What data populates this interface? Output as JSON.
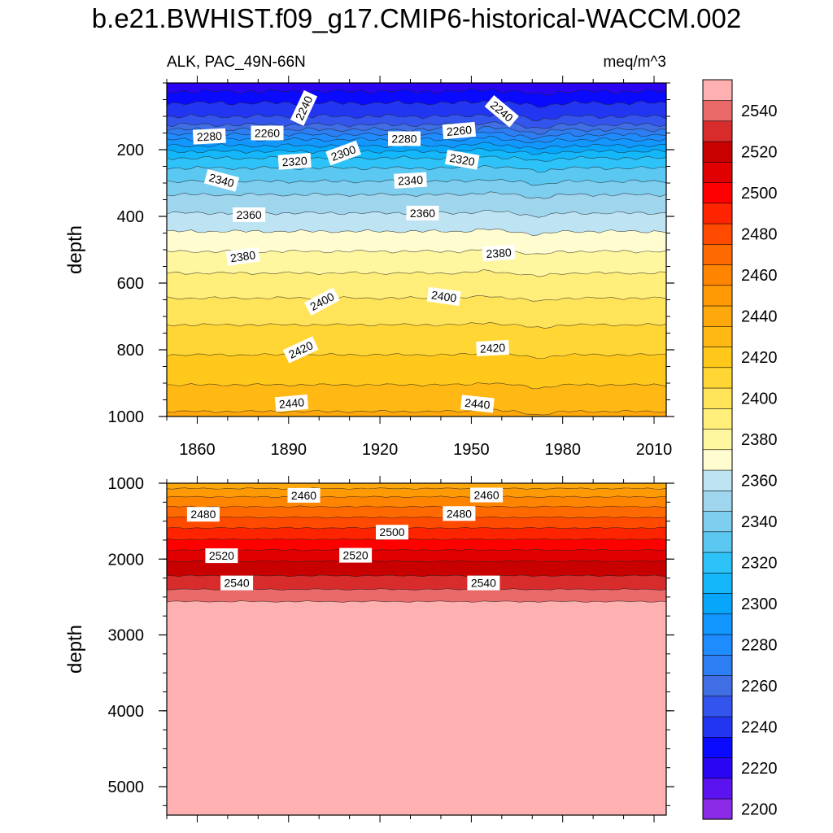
{
  "chart_data": {
    "type": "heatmap",
    "subtype": "filled-contour",
    "title": "b.e21.BWHIST.f09_g17.CMIP6-historical-WACCM.002",
    "left_subtitle": "ALK, PAC_49N-66N",
    "right_subtitle": "meq/m^3",
    "ylabel": "depth",
    "x_range": [
      1850,
      2014
    ],
    "x_ticks": [
      "1860",
      "1890",
      "1920",
      "1950",
      "1980",
      "2010"
    ],
    "x_tick_values": [
      1860,
      1890,
      1920,
      1950,
      1980,
      2010
    ],
    "panels": [
      {
        "name": "upper",
        "ylim": [
          0,
          1000
        ],
        "y_ticks": [
          "200",
          "400",
          "600",
          "800",
          "1000"
        ],
        "y_tick_values": [
          200,
          400,
          600,
          800,
          1000
        ],
        "contour_depths": [
          {
            "level": 2230,
            "depth": 25
          },
          {
            "level": 2240,
            "depth": 60
          },
          {
            "level": 2250,
            "depth": 100
          },
          {
            "level": 2260,
            "depth": 125
          },
          {
            "level": 2270,
            "depth": 140
          },
          {
            "level": 2280,
            "depth": 155
          },
          {
            "level": 2290,
            "depth": 170
          },
          {
            "level": 2300,
            "depth": 188
          },
          {
            "level": 2310,
            "depth": 205
          },
          {
            "level": 2320,
            "depth": 225
          },
          {
            "level": 2330,
            "depth": 255
          },
          {
            "level": 2340,
            "depth": 295
          },
          {
            "level": 2350,
            "depth": 335
          },
          {
            "level": 2360,
            "depth": 390
          },
          {
            "level": 2370,
            "depth": 445
          },
          {
            "level": 2380,
            "depth": 505
          },
          {
            "level": 2390,
            "depth": 570
          },
          {
            "level": 2400,
            "depth": 645
          },
          {
            "level": 2410,
            "depth": 725
          },
          {
            "level": 2420,
            "depth": 815
          },
          {
            "level": 2430,
            "depth": 905
          },
          {
            "level": 2440,
            "depth": 985
          }
        ],
        "contour_labels": [
          {
            "text": "2240",
            "year": 1895,
            "depth": 75,
            "angle": -65
          },
          {
            "text": "2240",
            "year": 1960,
            "depth": 85,
            "angle": 40
          },
          {
            "text": "2280",
            "year": 1864,
            "depth": 160,
            "angle": -3
          },
          {
            "text": "2260",
            "year": 1883,
            "depth": 150,
            "angle": 0
          },
          {
            "text": "2300",
            "year": 1908,
            "depth": 210,
            "angle": -20
          },
          {
            "text": "2280",
            "year": 1928,
            "depth": 167,
            "angle": 0
          },
          {
            "text": "2260",
            "year": 1946,
            "depth": 143,
            "angle": -5
          },
          {
            "text": "2320",
            "year": 1892,
            "depth": 235,
            "angle": -4
          },
          {
            "text": "2320",
            "year": 1947,
            "depth": 230,
            "angle": 10
          },
          {
            "text": "2340",
            "year": 1868,
            "depth": 292,
            "angle": 15
          },
          {
            "text": "2340",
            "year": 1930,
            "depth": 292,
            "angle": -3
          },
          {
            "text": "2360",
            "year": 1877,
            "depth": 395,
            "angle": 0
          },
          {
            "text": "2360",
            "year": 1934,
            "depth": 390,
            "angle": 0
          },
          {
            "text": "2380",
            "year": 1875,
            "depth": 520,
            "angle": -8
          },
          {
            "text": "2380",
            "year": 1959,
            "depth": 510,
            "angle": -4
          },
          {
            "text": "2400",
            "year": 1901,
            "depth": 655,
            "angle": -28
          },
          {
            "text": "2400",
            "year": 1941,
            "depth": 640,
            "angle": 8
          },
          {
            "text": "2420",
            "year": 1894,
            "depth": 800,
            "angle": -25
          },
          {
            "text": "2420",
            "year": 1957,
            "depth": 795,
            "angle": -3
          },
          {
            "text": "2440",
            "year": 1891,
            "depth": 960,
            "angle": -5
          },
          {
            "text": "2440",
            "year": 1952,
            "depth": 962,
            "angle": 6
          }
        ]
      },
      {
        "name": "lower",
        "ylim": [
          1000,
          5375
        ],
        "y_ticks": [
          "1000",
          "2000",
          "3000",
          "4000",
          "5000"
        ],
        "y_tick_values": [
          1000,
          2000,
          3000,
          4000,
          5000
        ],
        "contour_depths": [
          {
            "level": 2450,
            "depth": 1070
          },
          {
            "level": 2460,
            "depth": 1180
          },
          {
            "level": 2470,
            "depth": 1310
          },
          {
            "level": 2480,
            "depth": 1450
          },
          {
            "level": 2490,
            "depth": 1590
          },
          {
            "level": 2500,
            "depth": 1740
          },
          {
            "level": 2510,
            "depth": 1880
          },
          {
            "level": 2520,
            "depth": 2030
          },
          {
            "level": 2530,
            "depth": 2220
          },
          {
            "level": 2540,
            "depth": 2400
          },
          {
            "level": 2550,
            "depth": 2560
          }
        ],
        "contour_labels": [
          {
            "text": "2460",
            "year": 1895,
            "depth": 1160,
            "angle": 0
          },
          {
            "text": "2460",
            "year": 1955,
            "depth": 1155,
            "angle": 0
          },
          {
            "text": "2480",
            "year": 1862,
            "depth": 1410,
            "angle": 0
          },
          {
            "text": "2480",
            "year": 1946,
            "depth": 1400,
            "angle": 0
          },
          {
            "text": "2500",
            "year": 1924,
            "depth": 1645,
            "angle": 0
          },
          {
            "text": "2520",
            "year": 1868,
            "depth": 1955,
            "angle": 0
          },
          {
            "text": "2520",
            "year": 1912,
            "depth": 1950,
            "angle": 0
          },
          {
            "text": "2540",
            "year": 1873,
            "depth": 2315,
            "angle": 0
          },
          {
            "text": "2540",
            "year": 1954,
            "depth": 2315,
            "angle": 0
          }
        ]
      }
    ],
    "colorbar": {
      "ticks": [
        "2200",
        "2220",
        "2240",
        "2260",
        "2280",
        "2300",
        "2320",
        "2340",
        "2360",
        "2380",
        "2400",
        "2420",
        "2440",
        "2460",
        "2480",
        "2500",
        "2520",
        "2540"
      ],
      "levels": [
        2200,
        2210,
        2220,
        2230,
        2240,
        2250,
        2260,
        2270,
        2280,
        2290,
        2300,
        2310,
        2320,
        2330,
        2340,
        2350,
        2360,
        2370,
        2380,
        2390,
        2400,
        2410,
        2420,
        2430,
        2440,
        2450,
        2460,
        2470,
        2480,
        2490,
        2500,
        2510,
        2520,
        2530,
        2540,
        2550
      ],
      "colors": [
        "#8B2BE8",
        "#5B13F0",
        "#2A05F2",
        "#0A0AFF",
        "#2236F2",
        "#3355EE",
        "#3F6EE5",
        "#2D7DF3",
        "#1E8BFF",
        "#1296FF",
        "#08A6FB",
        "#14B8FA",
        "#2EC3F8",
        "#5BC8F2",
        "#7ECEF0",
        "#9FD6EE",
        "#BEE4F4",
        "#FFFDD0",
        "#FFF6A0",
        "#FFEE7A",
        "#FFE45A",
        "#FFD634",
        "#FFC81A",
        "#FFB814",
        "#FFA80C",
        "#FF9A05",
        "#FF8500",
        "#FF6A00",
        "#FF4A00",
        "#FF2400",
        "#FF0000",
        "#E00000",
        "#C80000",
        "#D82C2C",
        "#EA6A6A",
        "#FFB1B1"
      ]
    }
  }
}
